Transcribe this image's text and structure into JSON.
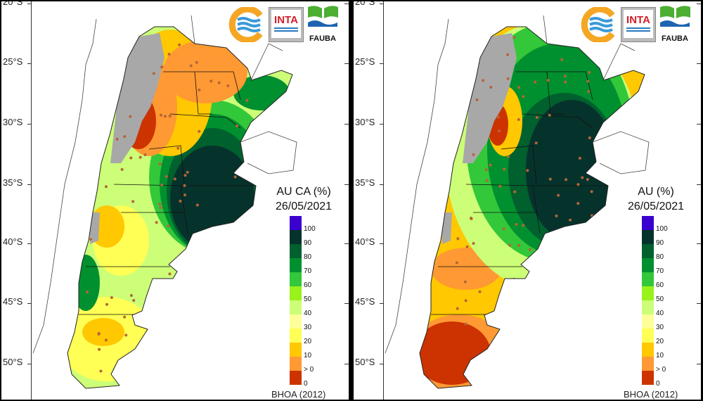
{
  "panels": [
    {
      "title": "AU CA (%)",
      "date": "26/05/2021",
      "source": "BHOA (2012)",
      "variant": "ca"
    },
    {
      "title": "AU (%)",
      "date": "26/05/2021",
      "source": "BHOA (2012)",
      "variant": "au"
    }
  ],
  "lat_labels": [
    "20°S",
    "25°S",
    "30°S",
    "35°S",
    "40°S",
    "45°S",
    "50°S"
  ],
  "legend": {
    "colors": [
      "#3a00d0",
      "#06322c",
      "#00602e",
      "#00902f",
      "#33c73a",
      "#99f21a",
      "#ccff77",
      "#ffff99",
      "#ffff55",
      "#ffc800",
      "#ff9933",
      "#cc3300"
    ],
    "labels": [
      "100",
      "90",
      "80",
      "70",
      "60",
      "50",
      "40",
      "30",
      "20",
      "10",
      "> 0",
      "0"
    ]
  },
  "logos": {
    "inta": "INTA",
    "fauba": "FAUBA"
  }
}
